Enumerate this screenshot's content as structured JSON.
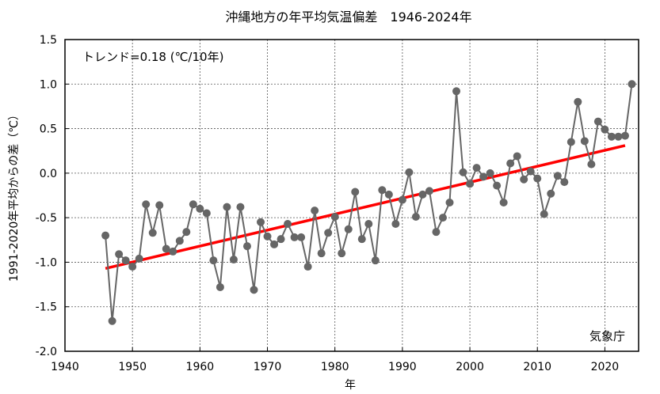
{
  "chart_data": {
    "type": "line",
    "title": "沖縄地方の年平均気温偏差　1946-2024年",
    "xlabel": "年",
    "ylabel": "1991-2020年平均からの差（℃）",
    "xlim": [
      1940,
      2025
    ],
    "ylim": [
      -2.0,
      1.5
    ],
    "grid": true,
    "x_ticks": [
      1940,
      1950,
      1960,
      1970,
      1980,
      1990,
      2000,
      2010,
      2020
    ],
    "x_tick_labels": [
      "1940",
      "1950",
      "1960",
      "1970",
      "1980",
      "1990",
      "2000",
      "2010",
      "2020"
    ],
    "y_ticks": [
      1.5,
      1.0,
      0.5,
      0.0,
      -0.5,
      -1.0,
      -1.5,
      -2.0
    ],
    "y_tick_labels": [
      "1.5",
      "1.0",
      "0.5",
      "0.0",
      "-0.5",
      "-1.0",
      "-1.5",
      "-2.0"
    ],
    "series": [
      {
        "name": "年平均気温偏差",
        "color": "#666666",
        "x": [
          1946,
          1947,
          1948,
          1949,
          1950,
          1951,
          1952,
          1953,
          1954,
          1955,
          1956,
          1957,
          1958,
          1959,
          1960,
          1961,
          1962,
          1963,
          1964,
          1965,
          1966,
          1967,
          1968,
          1969,
          1970,
          1971,
          1972,
          1973,
          1974,
          1975,
          1976,
          1977,
          1978,
          1979,
          1980,
          1981,
          1982,
          1983,
          1984,
          1985,
          1986,
          1987,
          1988,
          1989,
          1990,
          1991,
          1992,
          1993,
          1994,
          1995,
          1996,
          1997,
          1998,
          1999,
          2000,
          2001,
          2002,
          2003,
          2004,
          2005,
          2006,
          2007,
          2008,
          2009,
          2010,
          2011,
          2012,
          2013,
          2014,
          2015,
          2016,
          2017,
          2018,
          2019,
          2020,
          2021,
          2022,
          2023,
          2024
        ],
        "values": [
          -0.7,
          -1.66,
          -0.91,
          -0.98,
          -1.05,
          -0.96,
          -0.35,
          -0.67,
          -0.36,
          -0.85,
          -0.88,
          -0.76,
          -0.66,
          -0.35,
          -0.4,
          -0.45,
          -0.98,
          -1.28,
          -0.38,
          -0.97,
          -0.38,
          -0.82,
          -1.31,
          -0.55,
          -0.71,
          -0.8,
          -0.74,
          -0.57,
          -0.72,
          -0.72,
          -1.05,
          -0.42,
          -0.9,
          -0.67,
          -0.49,
          -0.9,
          -0.63,
          -0.21,
          -0.74,
          -0.57,
          -0.98,
          -0.19,
          -0.24,
          -0.57,
          -0.3,
          0.01,
          -0.49,
          -0.24,
          -0.2,
          -0.66,
          -0.5,
          -0.33,
          0.92,
          0.01,
          -0.12,
          0.06,
          -0.04,
          0.0,
          -0.14,
          -0.33,
          0.11,
          0.19,
          -0.07,
          0.02,
          -0.06,
          -0.46,
          -0.23,
          -0.03,
          -0.1,
          0.35,
          0.8,
          0.36,
          0.1,
          0.58,
          0.49,
          0.41,
          0.41,
          0.42,
          1.0
        ]
      }
    ],
    "trend": {
      "name": "トレンド",
      "color": "#ff0000",
      "x": [
        1946,
        2023
      ],
      "values": [
        -1.07,
        0.31
      ],
      "slope_per_decade": 0.18
    },
    "annotations": {
      "trend_label": "トレンド=0.18 (℃/10年)",
      "source": "気象庁"
    }
  }
}
